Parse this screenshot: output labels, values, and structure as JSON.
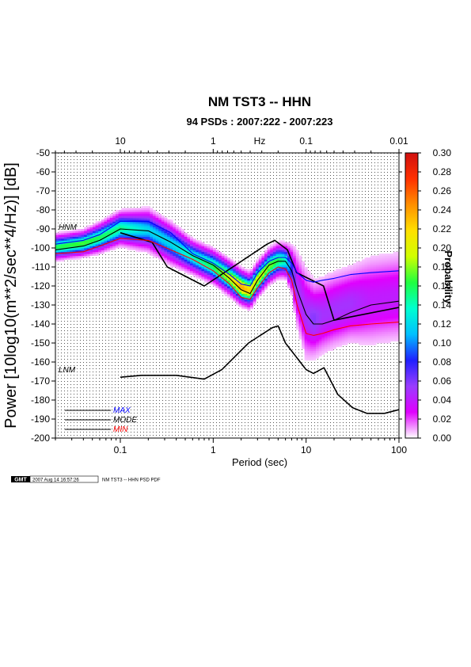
{
  "chart_data": {
    "type": "heatmap",
    "title": "NM TST3 -- HHN",
    "subtitle": "94 PSDs : 2007:222 - 2007:223",
    "xlabel": "Period (sec)",
    "ylabel": "Power [10log10(m**2/sec**4/Hz)] [dB]",
    "top_axis_label": "Hz",
    "x_scale": "log",
    "xlim": [
      0.02,
      100
    ],
    "ylim": [
      -200,
      -50
    ],
    "x_ticks": [
      0.1,
      1,
      10,
      100
    ],
    "x_tick_labels": [
      "0.1",
      "1",
      "10",
      "100"
    ],
    "top_ticks": [
      10,
      1,
      0.1,
      0.01
    ],
    "top_tick_labels": [
      "10",
      "1",
      "0.1",
      "0.01"
    ],
    "y_ticks": [
      -50,
      -60,
      -70,
      -80,
      -90,
      -100,
      -110,
      -120,
      -130,
      -140,
      -150,
      -160,
      -170,
      -180,
      -190,
      -200
    ],
    "y_tick_labels": [
      "-50",
      "-60",
      "-70",
      "-80",
      "-90",
      "-100",
      "-110",
      "-120",
      "-130",
      "-140",
      "-150",
      "-160",
      "-170",
      "-180",
      "-190",
      "-200"
    ],
    "grid": true,
    "colorbar": {
      "label": "Probability",
      "range": [
        0,
        0.3
      ],
      "ticks": [
        0.3,
        0.28,
        0.26,
        0.24,
        0.22,
        0.2,
        0.18,
        0.16,
        0.14,
        0.12,
        0.1,
        0.08,
        0.06,
        0.04,
        0.02,
        0.0
      ],
      "tick_labels": [
        "0.30",
        "0.28",
        "0.26",
        "0.24",
        "0.22",
        "0.20",
        "0.18",
        "0.16",
        "0.14",
        "0.12",
        "0.10",
        "0.08",
        "0.06",
        "0.04",
        "0.02",
        "0.00"
      ],
      "colors": [
        "#ffffff",
        "#e000ff",
        "#9a3cff",
        "#2020ff",
        "#00c0ff",
        "#00ffd0",
        "#20ff40",
        "#d0ff00",
        "#ffe000",
        "#ff9000",
        "#ff3000",
        "#d01010"
      ]
    },
    "series": [
      {
        "name": "HNM",
        "type": "line",
        "x": [
          0.1,
          0.22,
          0.32,
          0.8,
          3.8,
          4.6,
          6.3,
          7.9,
          15.4,
          20,
          354
        ],
        "y": [
          -92,
          -97,
          -110,
          -120,
          -98,
          -96,
          -101,
          -113,
          -120,
          -138,
          -126
        ]
      },
      {
        "name": "LNM",
        "type": "line",
        "x": [
          0.1,
          0.17,
          0.4,
          0.8,
          1.24,
          2.4,
          4.3,
          5,
          6,
          10,
          12,
          15.6,
          21.9,
          31.6,
          45,
          70,
          101
        ],
        "y": [
          -168,
          -167,
          -167,
          -169,
          -164,
          -150,
          -142,
          -141,
          -150,
          -164,
          -166,
          -163,
          -177,
          -184,
          -187,
          -187,
          -185
        ]
      },
      {
        "name": "MAX",
        "type": "line",
        "color": "#0000ff",
        "x": [
          0.02,
          0.04,
          0.06,
          0.1,
          0.2,
          0.35,
          0.6,
          1,
          1.5,
          2,
          2.5,
          3,
          4,
          5,
          6,
          7,
          8,
          10,
          12,
          15,
          20,
          30,
          50,
          100
        ],
        "y": [
          -98,
          -96,
          -93,
          -86,
          -86,
          -92,
          -103,
          -108,
          -114,
          -119,
          -120,
          -113,
          -107,
          -105,
          -105,
          -108,
          -113,
          -117,
          -118,
          -117,
          -116,
          -114,
          -113,
          -112
        ]
      },
      {
        "name": "MODE",
        "type": "line",
        "color": "#000000",
        "x": [
          0.02,
          0.04,
          0.06,
          0.1,
          0.2,
          0.35,
          0.6,
          1,
          1.5,
          2,
          2.5,
          3,
          4,
          5,
          6,
          7,
          8,
          10,
          12,
          15,
          20,
          30,
          50,
          100
        ],
        "y": [
          -101,
          -99,
          -96,
          -90,
          -91,
          -97,
          -104,
          -109,
          -116,
          -122,
          -124,
          -117,
          -109,
          -107,
          -107,
          -112,
          -122,
          -135,
          -140,
          -140,
          -138,
          -134,
          -130,
          -128
        ]
      },
      {
        "name": "MIN",
        "type": "line",
        "color": "#ff0000",
        "x": [
          0.02,
          0.04,
          0.06,
          0.1,
          0.2,
          0.35,
          0.6,
          1,
          1.5,
          2,
          2.5,
          3,
          4,
          5,
          6,
          7,
          8,
          10,
          12,
          15,
          20,
          30,
          50,
          100
        ],
        "y": [
          -103,
          -102,
          -99,
          -95,
          -96,
          -101,
          -106,
          -112,
          -119,
          -126,
          -127,
          -121,
          -113,
          -110,
          -111,
          -117,
          -130,
          -145,
          -146,
          -145,
          -143,
          -141,
          -140,
          -139
        ]
      }
    ],
    "density": {
      "x": [
        0.02,
        0.04,
        0.06,
        0.1,
        0.2,
        0.35,
        0.6,
        1,
        1.5,
        2,
        2.5,
        3,
        4,
        5,
        6,
        7,
        8,
        10,
        12,
        15,
        20,
        30,
        50,
        100
      ],
      "y_center": [
        -100,
        -98,
        -95,
        -90,
        -91,
        -98,
        -105,
        -110,
        -116,
        -121,
        -123,
        -117,
        -110,
        -107,
        -107,
        -112,
        -122,
        -135,
        -138,
        -136,
        -133,
        -130,
        -128,
        -126
      ],
      "spread_db": [
        3,
        3,
        3.5,
        4,
        5,
        5,
        4,
        4,
        4,
        4,
        4,
        4,
        4,
        4,
        4,
        6,
        10,
        12,
        10,
        10,
        10,
        10,
        12,
        12
      ],
      "peak_probability": [
        0.16,
        0.17,
        0.16,
        0.15,
        0.12,
        0.12,
        0.14,
        0.16,
        0.2,
        0.24,
        0.22,
        0.2,
        0.18,
        0.16,
        0.14,
        0.08,
        0.05,
        0.05,
        0.06,
        0.05,
        0.05,
        0.05,
        0.04,
        0.04
      ]
    },
    "legend": {
      "placement": "bottom-left",
      "entries": [
        "MAX",
        "MODE",
        "MIN"
      ]
    },
    "noise_model_labels": [
      "HNM",
      "LNM"
    ]
  },
  "footer": {
    "logo": "GMT",
    "timestamp": "2007 Aug 14 16:57:26",
    "caption": "NM TST3 -- HHN PSD PDF"
  }
}
